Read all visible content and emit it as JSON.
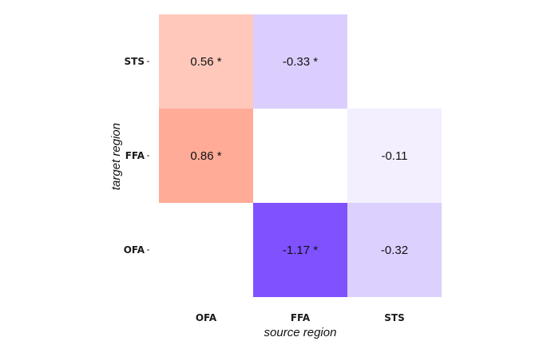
{
  "chart_data": {
    "type": "heatmap",
    "title": "",
    "xlabel": "source region",
    "ylabel": "target region",
    "x_categories": [
      "OFA",
      "FFA",
      "STS"
    ],
    "y_categories": [
      "STS",
      "FFA",
      "OFA"
    ],
    "cells": [
      {
        "source": "OFA",
        "target": "STS",
        "value": 0.56,
        "label": "0.56 *",
        "significant": true
      },
      {
        "source": "FFA",
        "target": "STS",
        "value": -0.33,
        "label": "-0.33 *",
        "significant": true
      },
      {
        "source": "OFA",
        "target": "FFA",
        "value": 0.86,
        "label": "0.86 *",
        "significant": true
      },
      {
        "source": "STS",
        "target": "FFA",
        "value": -0.11,
        "label": "-0.11",
        "significant": false
      },
      {
        "source": "FFA",
        "target": "OFA",
        "value": -1.17,
        "label": "-1.17 *",
        "significant": true
      },
      {
        "source": "STS",
        "target": "OFA",
        "value": -0.32,
        "label": "-0.32",
        "significant": false
      }
    ],
    "colors": {
      "positive": "#ff8a6e",
      "negative": "#7c4dff",
      "neutral": "#ffffff"
    },
    "grid": false,
    "legend": "none"
  }
}
